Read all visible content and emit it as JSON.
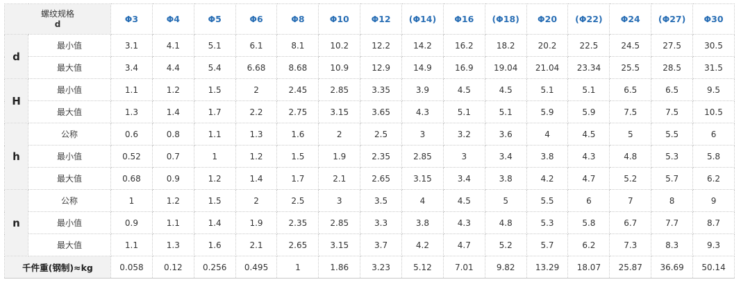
{
  "header": {
    "title": "螺纹规格",
    "subtitle": "d",
    "sizes": [
      "Φ3",
      "Φ4",
      "Φ5",
      "Φ6",
      "Φ8",
      "Φ10",
      "Φ12",
      "(Φ14)",
      "Φ16",
      "(Φ18)",
      "Φ20",
      "(Φ22)",
      "Φ24",
      "(Φ27)",
      "Φ30"
    ]
  },
  "groups": [
    {
      "name": "d",
      "rows": [
        {
          "label": "最小值",
          "values": [
            "3.1",
            "4.1",
            "5.1",
            "6.1",
            "8.1",
            "10.2",
            "12.2",
            "14.2",
            "16.2",
            "18.2",
            "20.2",
            "22.5",
            "24.5",
            "27.5",
            "30.5"
          ]
        },
        {
          "label": "最大值",
          "values": [
            "3.4",
            "4.4",
            "5.4",
            "6.68",
            "8.68",
            "10.9",
            "12.9",
            "14.9",
            "16.9",
            "19.04",
            "21.04",
            "23.34",
            "25.5",
            "28.5",
            "31.5"
          ]
        }
      ]
    },
    {
      "name": "H",
      "rows": [
        {
          "label": "最小值",
          "values": [
            "1.1",
            "1.2",
            "1.5",
            "2",
            "2.45",
            "2.85",
            "3.35",
            "3.9",
            "4.5",
            "4.5",
            "5.1",
            "5.1",
            "6.5",
            "6.5",
            "9.5"
          ]
        },
        {
          "label": "最大值",
          "values": [
            "1.3",
            "1.4",
            "1.7",
            "2.2",
            "2.75",
            "3.15",
            "3.65",
            "4.3",
            "5.1",
            "5.1",
            "5.9",
            "5.9",
            "7.5",
            "7.5",
            "10.5"
          ]
        }
      ]
    },
    {
      "name": "h",
      "rows": [
        {
          "label": "公称",
          "values": [
            "0.6",
            "0.8",
            "1.1",
            "1.3",
            "1.6",
            "2",
            "2.5",
            "3",
            "3.2",
            "3.6",
            "4",
            "4.5",
            "5",
            "5.5",
            "6"
          ]
        },
        {
          "label": "最小值",
          "values": [
            "0.52",
            "0.7",
            "1",
            "1.2",
            "1.5",
            "1.9",
            "2.35",
            "2.85",
            "3",
            "3.4",
            "3.8",
            "4.3",
            "4.8",
            "5.3",
            "5.8"
          ]
        },
        {
          "label": "最大值",
          "values": [
            "0.68",
            "0.9",
            "1.2",
            "1.4",
            "1.7",
            "2.1",
            "2.65",
            "3.15",
            "3.4",
            "3.8",
            "4.2",
            "4.7",
            "5.2",
            "5.7",
            "6.2"
          ]
        }
      ]
    },
    {
      "name": "n",
      "rows": [
        {
          "label": "公称",
          "values": [
            "1",
            "1.2",
            "1.5",
            "2",
            "2.5",
            "3",
            "3.5",
            "4",
            "4.5",
            "5",
            "5.5",
            "6",
            "7",
            "8",
            "9"
          ]
        },
        {
          "label": "最小值",
          "values": [
            "0.9",
            "1.1",
            "1.4",
            "1.9",
            "2.35",
            "2.85",
            "3.3",
            "3.8",
            "4.3",
            "4.8",
            "5.3",
            "5.8",
            "6.7",
            "7.7",
            "8.7"
          ]
        },
        {
          "label": "最大值",
          "values": [
            "1.1",
            "1.3",
            "1.6",
            "2.1",
            "2.65",
            "3.15",
            "3.7",
            "4.2",
            "4.7",
            "5.2",
            "5.7",
            "6.2",
            "7.3",
            "8.3",
            "9.3"
          ]
        }
      ]
    }
  ],
  "weight": {
    "label": "千件重(钢制)≈kg",
    "values": [
      "0.058",
      "0.12",
      "0.256",
      "0.495",
      "1",
      "1.86",
      "3.23",
      "5.12",
      "7.01",
      "9.82",
      "13.29",
      "18.07",
      "25.87",
      "36.69",
      "50.14"
    ]
  }
}
